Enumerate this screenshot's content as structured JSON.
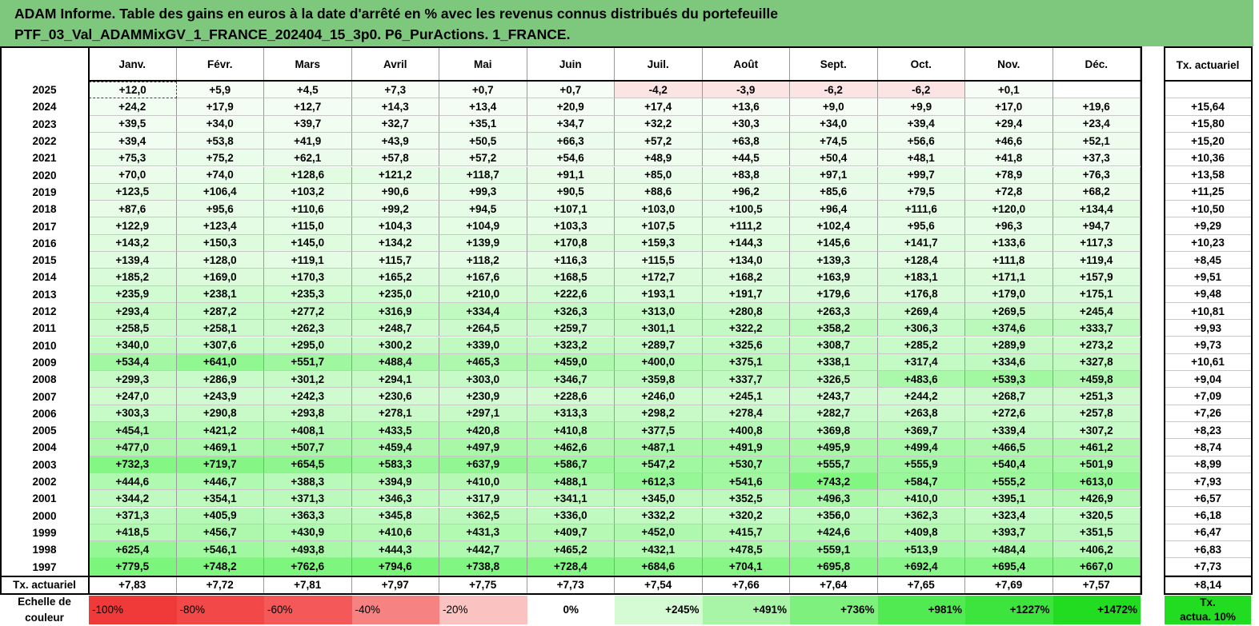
{
  "title": {
    "line1": "ADAM Informe. Table des gains en euros à la date d'arrêté en % avec les revenus connus distribués du portefeuille",
    "line2": "PTF_03_Val_ADAMMixGV_1_FRANCE_202404_15_3p0. P6_PurActions. 1_FRANCE."
  },
  "chart_data": {
    "type": "table",
    "columns": [
      "Janv.",
      "Févr.",
      "Mars",
      "Avril",
      "Mai",
      "Juin",
      "Juil.",
      "Août",
      "Sept.",
      "Oct.",
      "Nov.",
      "Déc."
    ],
    "rate_header": "Tx. actuariel",
    "rows": [
      {
        "year": "2025",
        "values": [
          "+12,0",
          "+5,9",
          "+4,5",
          "+7,3",
          "+0,7",
          "+0,7",
          "-4,2",
          "-3,9",
          "-6,2",
          "-6,2",
          "+0,1",
          ""
        ],
        "rate": ""
      },
      {
        "year": "2024",
        "values": [
          "+24,2",
          "+17,9",
          "+12,7",
          "+14,3",
          "+13,4",
          "+20,9",
          "+17,4",
          "+13,6",
          "+9,0",
          "+9,9",
          "+17,0",
          "+19,6"
        ],
        "rate": "+15,64"
      },
      {
        "year": "2023",
        "values": [
          "+39,5",
          "+34,0",
          "+39,7",
          "+32,7",
          "+35,1",
          "+34,7",
          "+32,2",
          "+30,3",
          "+34,0",
          "+39,4",
          "+29,4",
          "+23,4"
        ],
        "rate": "+15,80"
      },
      {
        "year": "2022",
        "values": [
          "+39,4",
          "+53,8",
          "+41,9",
          "+43,9",
          "+50,5",
          "+66,3",
          "+57,2",
          "+63,8",
          "+74,5",
          "+56,6",
          "+46,6",
          "+52,1"
        ],
        "rate": "+15,20"
      },
      {
        "year": "2021",
        "values": [
          "+75,3",
          "+75,2",
          "+62,1",
          "+57,8",
          "+57,2",
          "+54,6",
          "+48,9",
          "+44,5",
          "+50,4",
          "+48,1",
          "+41,8",
          "+37,3"
        ],
        "rate": "+10,36"
      },
      {
        "year": "2020",
        "values": [
          "+70,0",
          "+74,0",
          "+128,6",
          "+121,2",
          "+118,7",
          "+91,1",
          "+85,0",
          "+83,8",
          "+97,1",
          "+99,7",
          "+78,9",
          "+76,3"
        ],
        "rate": "+13,58"
      },
      {
        "year": "2019",
        "values": [
          "+123,5",
          "+106,4",
          "+103,2",
          "+90,6",
          "+99,3",
          "+90,5",
          "+88,6",
          "+96,2",
          "+85,6",
          "+79,5",
          "+72,8",
          "+68,2"
        ],
        "rate": "+11,25"
      },
      {
        "year": "2018",
        "values": [
          "+87,6",
          "+95,6",
          "+110,6",
          "+99,2",
          "+94,5",
          "+107,1",
          "+103,0",
          "+100,5",
          "+96,4",
          "+111,6",
          "+120,0",
          "+134,4"
        ],
        "rate": "+10,50"
      },
      {
        "year": "2017",
        "values": [
          "+122,9",
          "+123,4",
          "+115,0",
          "+104,3",
          "+104,9",
          "+103,3",
          "+107,5",
          "+111,2",
          "+102,4",
          "+95,6",
          "+96,3",
          "+94,7"
        ],
        "rate": "+9,29"
      },
      {
        "year": "2016",
        "values": [
          "+143,2",
          "+150,3",
          "+145,0",
          "+134,2",
          "+139,9",
          "+170,8",
          "+159,3",
          "+144,3",
          "+145,6",
          "+141,7",
          "+133,6",
          "+117,3"
        ],
        "rate": "+10,23"
      },
      {
        "year": "2015",
        "values": [
          "+139,4",
          "+128,0",
          "+119,1",
          "+115,7",
          "+118,2",
          "+116,3",
          "+115,5",
          "+134,0",
          "+139,3",
          "+128,4",
          "+111,8",
          "+119,4"
        ],
        "rate": "+8,45"
      },
      {
        "year": "2014",
        "values": [
          "+185,2",
          "+169,0",
          "+170,3",
          "+165,2",
          "+167,6",
          "+168,5",
          "+172,7",
          "+168,2",
          "+163,9",
          "+183,1",
          "+171,1",
          "+157,9"
        ],
        "rate": "+9,51"
      },
      {
        "year": "2013",
        "values": [
          "+235,9",
          "+238,1",
          "+235,3",
          "+235,0",
          "+210,0",
          "+222,6",
          "+193,1",
          "+191,7",
          "+179,6",
          "+176,8",
          "+179,0",
          "+175,1"
        ],
        "rate": "+9,48"
      },
      {
        "year": "2012",
        "values": [
          "+293,4",
          "+287,2",
          "+277,2",
          "+316,9",
          "+334,4",
          "+326,3",
          "+313,0",
          "+280,8",
          "+263,3",
          "+269,4",
          "+269,5",
          "+245,4"
        ],
        "rate": "+10,81"
      },
      {
        "year": "2011",
        "values": [
          "+258,5",
          "+258,1",
          "+262,3",
          "+248,7",
          "+264,5",
          "+259,7",
          "+301,1",
          "+322,2",
          "+358,2",
          "+306,3",
          "+374,6",
          "+333,7"
        ],
        "rate": "+9,93"
      },
      {
        "year": "2010",
        "values": [
          "+340,0",
          "+307,6",
          "+295,0",
          "+300,2",
          "+339,0",
          "+323,2",
          "+289,7",
          "+325,6",
          "+308,7",
          "+285,2",
          "+289,9",
          "+273,2"
        ],
        "rate": "+9,73"
      },
      {
        "year": "2009",
        "values": [
          "+534,4",
          "+641,0",
          "+551,7",
          "+488,4",
          "+465,3",
          "+459,0",
          "+400,0",
          "+375,1",
          "+338,1",
          "+317,4",
          "+334,6",
          "+327,8"
        ],
        "rate": "+10,61"
      },
      {
        "year": "2008",
        "values": [
          "+299,3",
          "+286,9",
          "+301,2",
          "+294,1",
          "+303,0",
          "+346,7",
          "+359,8",
          "+337,7",
          "+326,5",
          "+483,6",
          "+539,3",
          "+459,8"
        ],
        "rate": "+9,04"
      },
      {
        "year": "2007",
        "values": [
          "+247,0",
          "+243,9",
          "+242,3",
          "+230,6",
          "+230,9",
          "+228,6",
          "+246,0",
          "+245,1",
          "+243,7",
          "+244,2",
          "+268,7",
          "+251,3"
        ],
        "rate": "+7,09"
      },
      {
        "year": "2006",
        "values": [
          "+303,3",
          "+290,8",
          "+293,8",
          "+278,1",
          "+297,1",
          "+313,3",
          "+298,2",
          "+278,4",
          "+282,7",
          "+263,8",
          "+272,6",
          "+257,8"
        ],
        "rate": "+7,26"
      },
      {
        "year": "2005",
        "values": [
          "+454,1",
          "+421,2",
          "+408,1",
          "+433,5",
          "+420,8",
          "+410,8",
          "+377,5",
          "+400,8",
          "+369,8",
          "+369,7",
          "+339,4",
          "+307,2"
        ],
        "rate": "+8,23"
      },
      {
        "year": "2004",
        "values": [
          "+477,0",
          "+469,1",
          "+507,7",
          "+459,4",
          "+497,9",
          "+462,6",
          "+487,1",
          "+491,9",
          "+495,9",
          "+499,4",
          "+466,5",
          "+461,2"
        ],
        "rate": "+8,74"
      },
      {
        "year": "2003",
        "values": [
          "+732,3",
          "+719,7",
          "+654,5",
          "+583,3",
          "+637,9",
          "+586,7",
          "+547,2",
          "+530,7",
          "+555,7",
          "+555,9",
          "+540,4",
          "+501,9"
        ],
        "rate": "+8,99"
      },
      {
        "year": "2002",
        "values": [
          "+444,6",
          "+446,7",
          "+388,3",
          "+394,9",
          "+410,0",
          "+488,1",
          "+612,3",
          "+541,6",
          "+743,2",
          "+584,7",
          "+555,2",
          "+613,0"
        ],
        "rate": "+7,93"
      },
      {
        "year": "2001",
        "values": [
          "+344,2",
          "+354,1",
          "+371,3",
          "+346,3",
          "+317,9",
          "+341,1",
          "+345,0",
          "+352,5",
          "+496,3",
          "+410,0",
          "+395,1",
          "+426,9"
        ],
        "rate": "+6,57"
      },
      {
        "year": "2000",
        "values": [
          "+371,3",
          "+405,9",
          "+363,3",
          "+345,8",
          "+362,5",
          "+336,0",
          "+332,2",
          "+320,2",
          "+356,0",
          "+362,3",
          "+323,4",
          "+320,5"
        ],
        "rate": "+6,18"
      },
      {
        "year": "1999",
        "values": [
          "+418,5",
          "+456,7",
          "+430,9",
          "+410,6",
          "+431,3",
          "+409,7",
          "+452,0",
          "+415,7",
          "+424,6",
          "+409,8",
          "+393,7",
          "+351,5"
        ],
        "rate": "+6,47"
      },
      {
        "year": "1998",
        "values": [
          "+625,4",
          "+546,1",
          "+493,8",
          "+444,3",
          "+442,7",
          "+465,2",
          "+432,1",
          "+478,5",
          "+559,1",
          "+513,9",
          "+484,4",
          "+406,2"
        ],
        "rate": "+6,83"
      },
      {
        "year": "1997",
        "values": [
          "+779,5",
          "+748,2",
          "+762,6",
          "+794,6",
          "+738,8",
          "+728,4",
          "+684,6",
          "+704,1",
          "+695,8",
          "+692,4",
          "+695,4",
          "+667,0"
        ],
        "rate": "+7,73"
      }
    ],
    "footer": {
      "label": "Tx. actuariel",
      "values": [
        "+7,83",
        "+7,72",
        "+7,81",
        "+7,97",
        "+7,75",
        "+7,73",
        "+7,54",
        "+7,66",
        "+7,64",
        "+7,65",
        "+7,69",
        "+7,57"
      ],
      "rate": "+8,14"
    },
    "color_scale": {
      "label_line1": "Echelle de",
      "label_line2": "couleur",
      "steps": [
        {
          "label": "-100%",
          "color": "#f03a3a"
        },
        {
          "label": "-80%",
          "color": "#f24848"
        },
        {
          "label": "-60%",
          "color": "#f45858"
        },
        {
          "label": "-40%",
          "color": "#f68282"
        },
        {
          "label": "-20%",
          "color": "#fbc2c2"
        },
        {
          "label": "0%",
          "color": "#ffffff"
        },
        {
          "label": "+245%",
          "color": "#d4fbd4"
        },
        {
          "label": "+491%",
          "color": "#a8f5a8"
        },
        {
          "label": "+736%",
          "color": "#7ef07e"
        },
        {
          "label": "+981%",
          "color": "#52ea52"
        },
        {
          "label": "+1227%",
          "color": "#3ee43e"
        },
        {
          "label": "+1472%",
          "color": "#22dc22"
        }
      ],
      "rate_label_line1": "Tx.",
      "rate_label_line2": "actua. 10%",
      "rate_color": "#22dc22"
    },
    "colors": {
      "title_bg": "#7ec87e",
      "negative_light": "#fde4e4",
      "positive_max": "#22dc22"
    }
  }
}
